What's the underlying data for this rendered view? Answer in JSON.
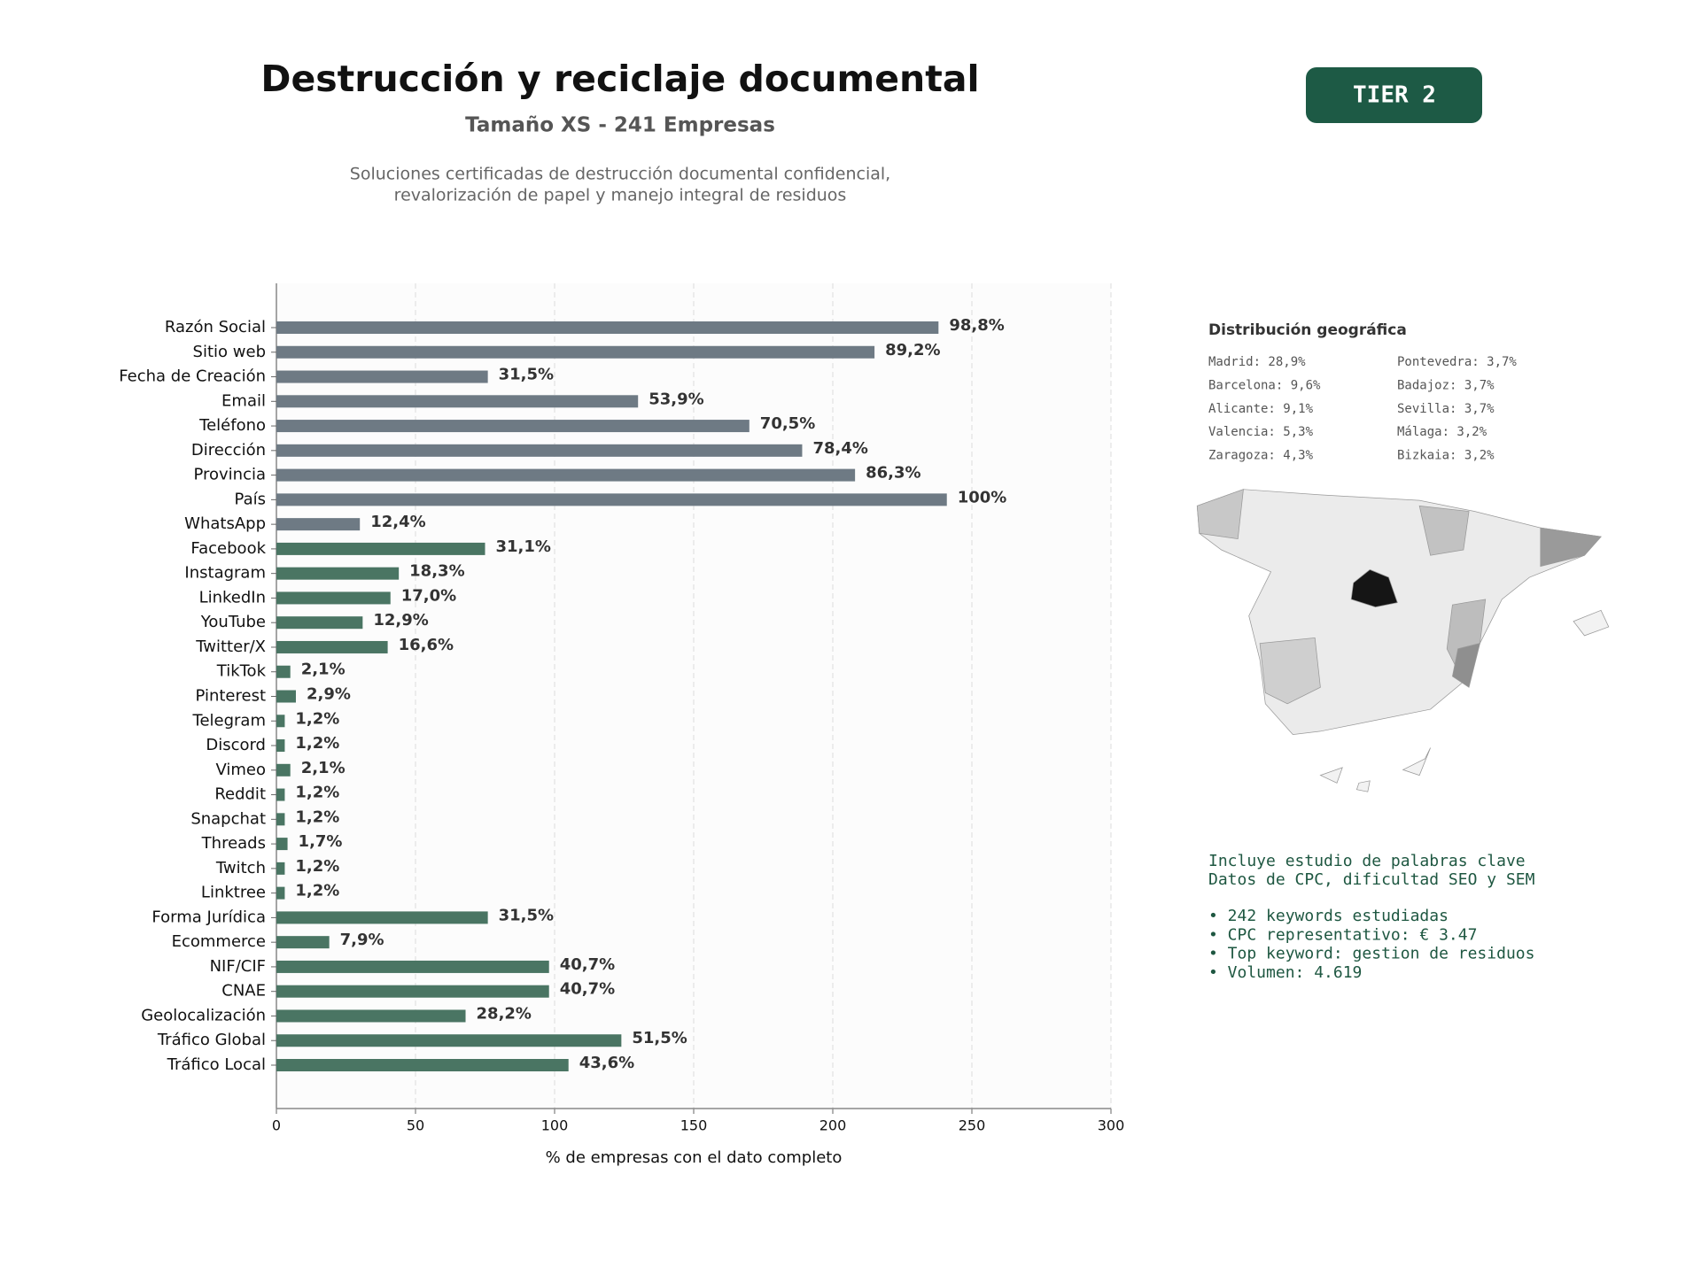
{
  "header": {
    "title": "Destrucción y reciclaje documental",
    "subtitle": "Tamaño XS - 241 Empresas",
    "description": [
      "Soluciones certificadas de destrucción documental confidencial,",
      "revalorización de papel y manejo integral de residuos"
    ],
    "badge": "TIER 2"
  },
  "chart_data": {
    "type": "hbar",
    "categories": [
      "Razón Social",
      "Sitio web",
      "Fecha de Creación",
      "Email",
      "Teléfono",
      "Dirección",
      "Provincia",
      "País",
      "WhatsApp",
      "Facebook",
      "Instagram",
      "LinkedIn",
      "YouTube",
      "Twitter/X",
      "TikTok",
      "Pinterest",
      "Telegram",
      "Discord",
      "Vimeo",
      "Reddit",
      "Snapchat",
      "Threads",
      "Twitch",
      "Linktree",
      "Forma Jurídica",
      "Ecommerce",
      "NIF/CIF",
      "CNAE",
      "Geolocalización",
      "Tráfico Global",
      "Tráfico Local"
    ],
    "values": [
      238,
      215,
      76,
      130,
      170,
      189,
      208,
      241,
      30,
      75,
      44,
      41,
      31,
      40,
      5,
      7,
      3,
      3,
      5,
      3,
      3,
      4,
      3,
      3,
      76,
      19,
      98,
      98,
      68,
      124,
      105
    ],
    "value_labels": [
      "98,8%",
      "89,2%",
      "31,5%",
      "53,9%",
      "70,5%",
      "78,4%",
      "86,3%",
      "100%",
      "12,4%",
      "31,1%",
      "18,3%",
      "17,0%",
      "12,9%",
      "16,6%",
      "2,1%",
      "2,9%",
      "1,2%",
      "1,2%",
      "2,1%",
      "1,2%",
      "1,2%",
      "1,7%",
      "1,2%",
      "1,2%",
      "31,5%",
      "7,9%",
      "40,7%",
      "40,7%",
      "28,2%",
      "51,5%",
      "43,6%"
    ],
    "colors": [
      "#6e7a84",
      "#6e7a84",
      "#6e7a84",
      "#6e7a84",
      "#6e7a84",
      "#6e7a84",
      "#6e7a84",
      "#6e7a84",
      "#6e7a84",
      "#4a7563",
      "#4a7563",
      "#4a7563",
      "#4a7563",
      "#4a7563",
      "#4a7563",
      "#4a7563",
      "#4a7563",
      "#4a7563",
      "#4a7563",
      "#4a7563",
      "#4a7563",
      "#4a7563",
      "#4a7563",
      "#4a7563",
      "#4a7563",
      "#4a7563",
      "#4a7563",
      "#4a7563",
      "#4a7563",
      "#4a7563",
      "#4a7563"
    ],
    "xlabel": "% de empresas con el dato completo",
    "xlim": [
      0,
      300
    ],
    "xticks": [
      0,
      50,
      100,
      150,
      200,
      250,
      300
    ],
    "grid": true
  },
  "geo": {
    "title": "Distribución geográfica",
    "provinces": [
      "Madrid: 28,9%",
      "Barcelona: 9,6%",
      "Alicante: 9,1%",
      "Valencia: 5,3%",
      "Zaragoza: 4,3%",
      "Pontevedra: 3,7%",
      "Badajoz: 3,7%",
      "Sevilla: 3,7%",
      "Málaga: 3,2%",
      "Bizkaia: 3,2%"
    ]
  },
  "notes": {
    "lines": [
      "Incluye estudio de palabras clave",
      "Datos de CPC, dificultad SEO y SEM"
    ],
    "bullets": [
      "• 242 keywords estudiadas",
      "• CPC representativo: € 3.47",
      "• Top keyword: gestion de residuos",
      "• Volumen: 4.619"
    ]
  }
}
